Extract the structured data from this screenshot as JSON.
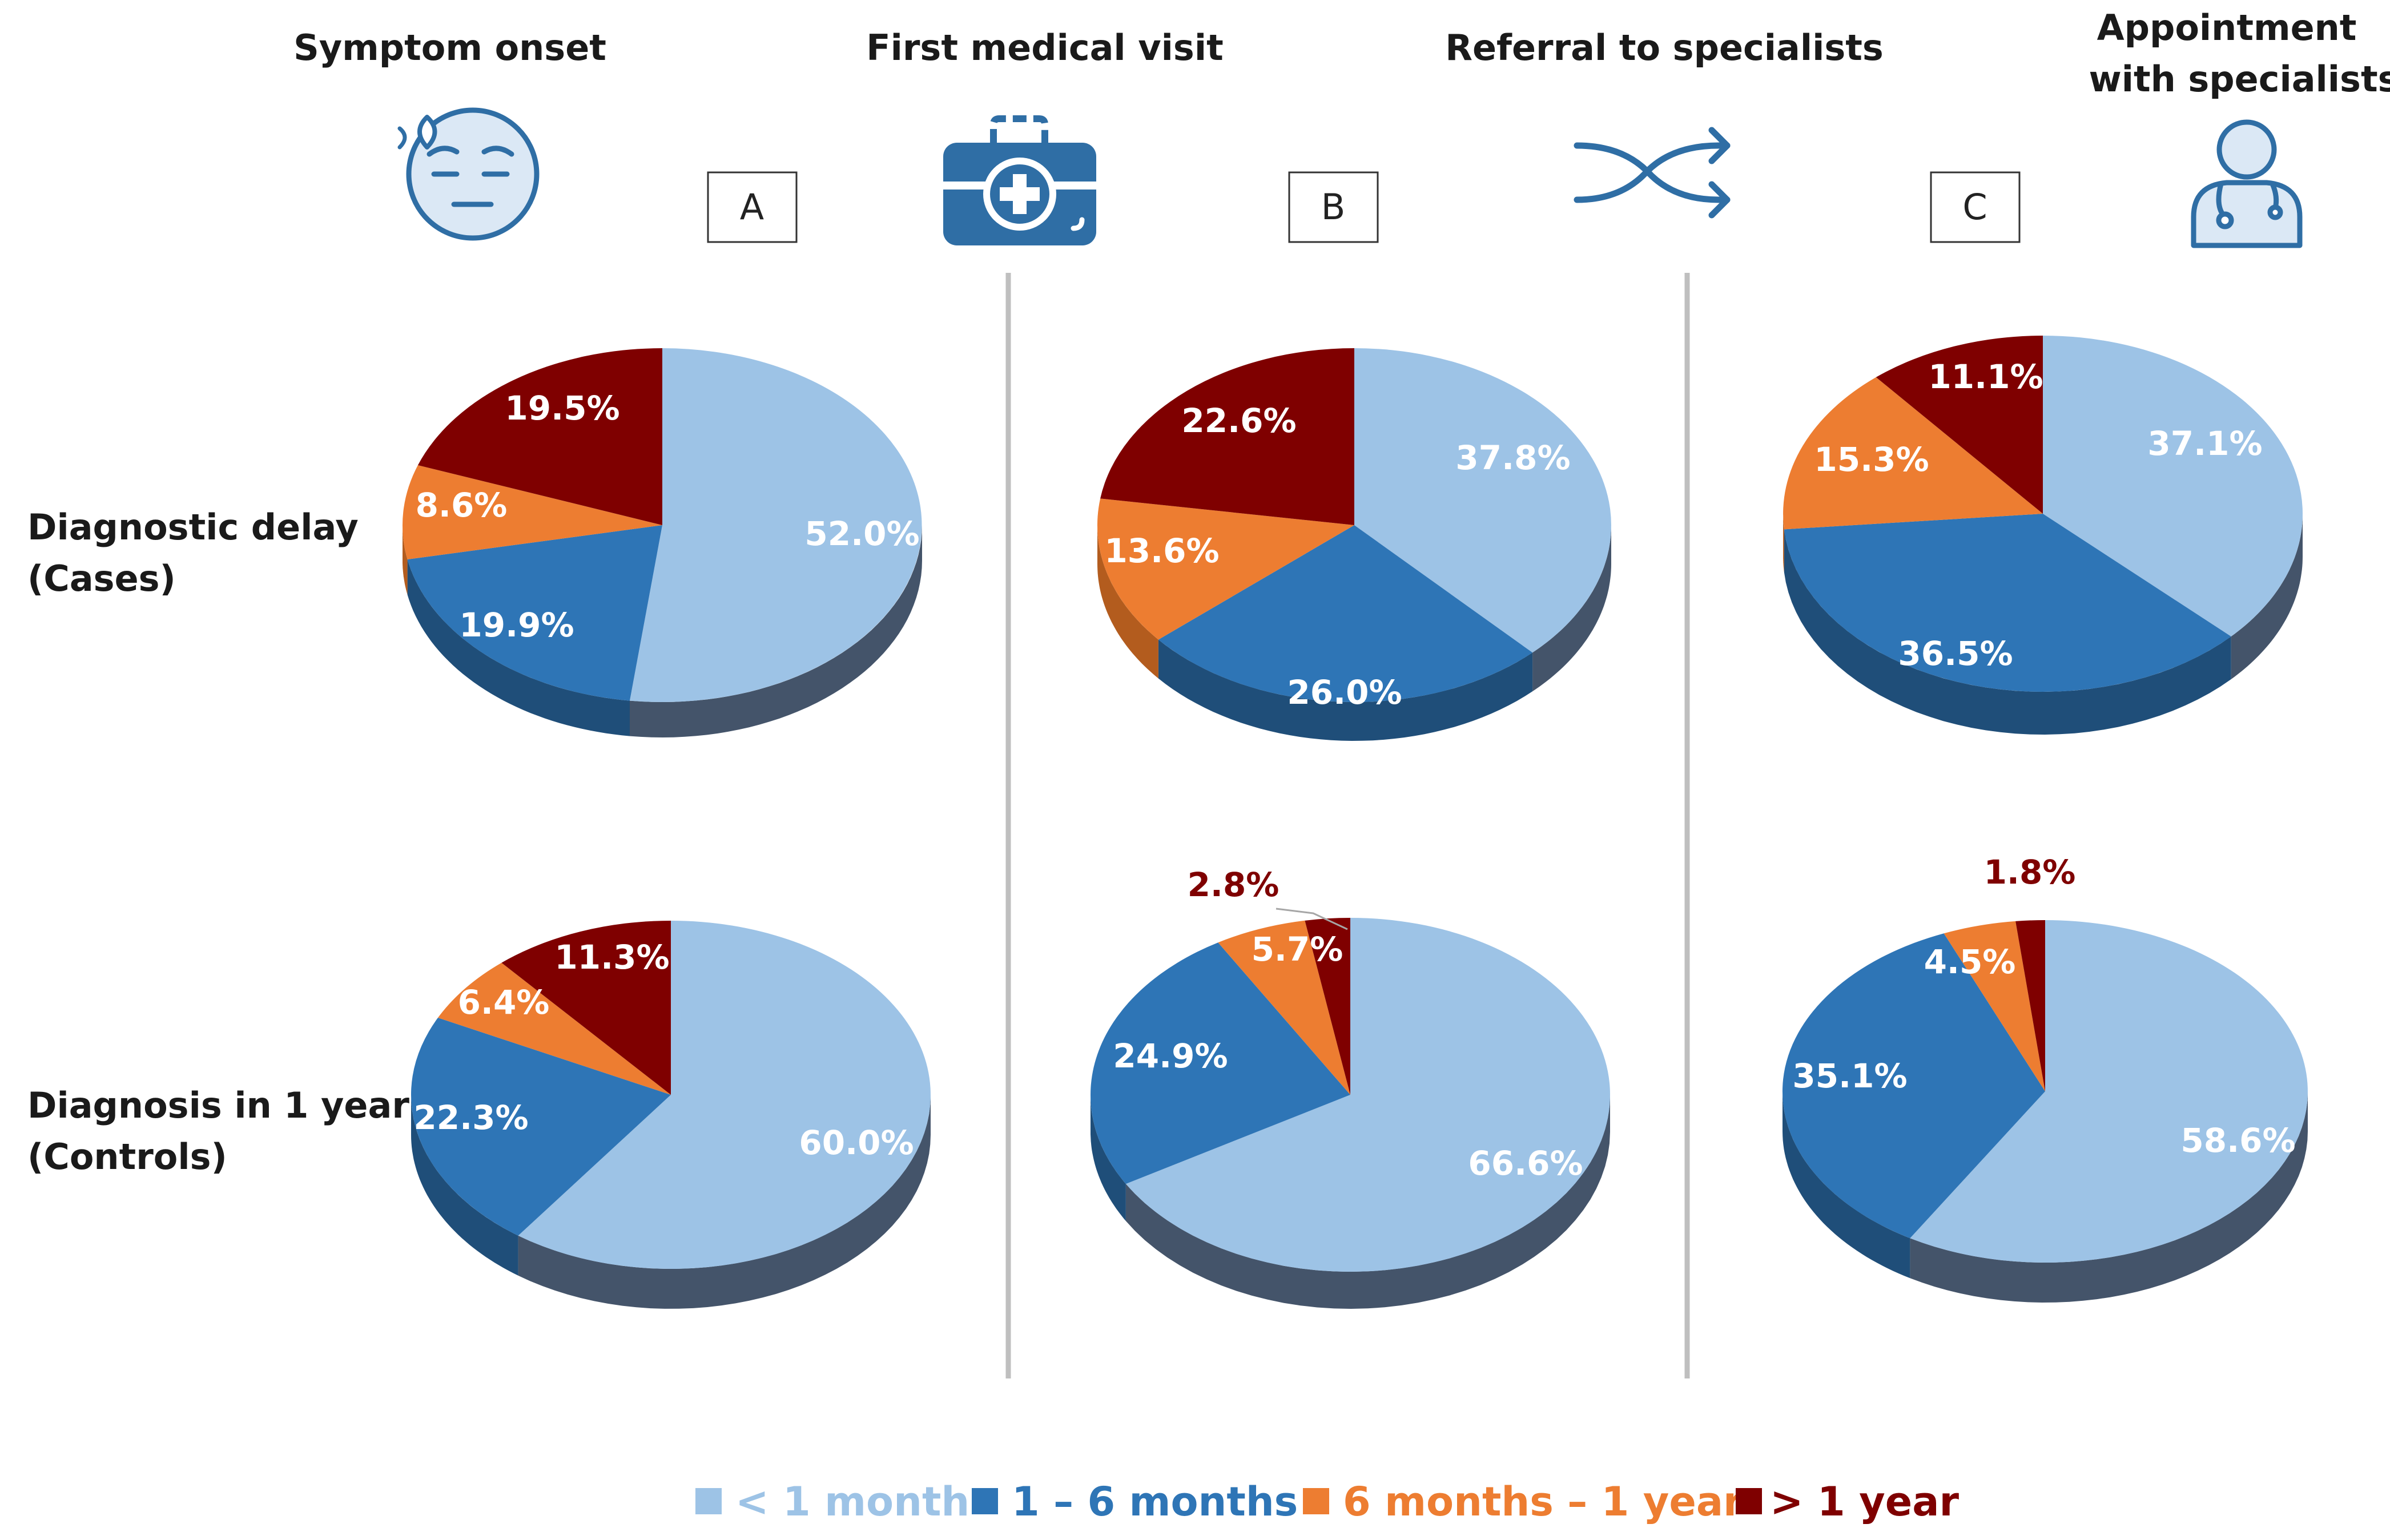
{
  "headers": {
    "symptom_onset": "Symptom onset",
    "first_visit": "First medical visit",
    "referral": "Referral to specialists",
    "appointment_line1": "Appointment",
    "appointment_line2": "with specialists"
  },
  "interval_labels": [
    "A",
    "B",
    "C"
  ],
  "row_labels": {
    "cases_line1": "Diagnostic delay",
    "cases_line2": "(Cases)",
    "controls_line1": "Diagnosis in 1 year",
    "controls_line2": "(Controls)"
  },
  "legend": [
    "< 1 month",
    "1 – 6 months",
    "6 months – 1 year",
    "> 1 year"
  ],
  "colors": {
    "lt1m": "#9dc3e6",
    "m1to6": "#2e75b6",
    "m6to12": "#ed7d31",
    "gt1y": "#7f0000",
    "divider": "#bfbfbf",
    "icon": "#2f6ea5"
  },
  "chart_data": [
    {
      "type": "pie",
      "interval": "A",
      "group": "Cases",
      "categories": [
        "< 1 month",
        "1 – 6 months",
        "6 months – 1 year",
        "> 1 year"
      ],
      "values": [
        52.0,
        19.9,
        8.6,
        19.5
      ],
      "labels": [
        "52.0%",
        "19.9%",
        "8.6%",
        "19.5%"
      ]
    },
    {
      "type": "pie",
      "interval": "B",
      "group": "Cases",
      "categories": [
        "< 1 month",
        "1 – 6 months",
        "6 months – 1 year",
        "> 1 year"
      ],
      "values": [
        37.8,
        26.0,
        13.6,
        22.6
      ],
      "labels": [
        "37.8%",
        "26.0%",
        "13.6%",
        "22.6%"
      ]
    },
    {
      "type": "pie",
      "interval": "C",
      "group": "Cases",
      "categories": [
        "< 1 month",
        "1 – 6 months",
        "6 months – 1 year",
        "> 1 year"
      ],
      "values": [
        37.1,
        36.5,
        15.3,
        11.1
      ],
      "labels": [
        "37.1%",
        "36.5%",
        "15.3%",
        "11.1%"
      ]
    },
    {
      "type": "pie",
      "interval": "A",
      "group": "Controls",
      "categories": [
        "< 1 month",
        "1 – 6 months",
        "6 months – 1 year",
        "> 1 year"
      ],
      "values": [
        60.0,
        22.3,
        6.4,
        11.3
      ],
      "labels": [
        "60.0%",
        "22.3%",
        "6.4%",
        "11.3%"
      ]
    },
    {
      "type": "pie",
      "interval": "B",
      "group": "Controls",
      "categories": [
        "< 1 month",
        "1 – 6 months",
        "6 months – 1 year",
        "> 1 year"
      ],
      "values": [
        66.6,
        24.9,
        5.7,
        2.8
      ],
      "labels": [
        "66.6%",
        "24.9%",
        "5.7%",
        "2.8%"
      ]
    },
    {
      "type": "pie",
      "interval": "C",
      "group": "Controls",
      "categories": [
        "< 1 month",
        "1 – 6 months",
        "6 months – 1 year",
        "> 1 year"
      ],
      "values": [
        58.6,
        35.1,
        4.5,
        1.8
      ],
      "labels": [
        "58.6%",
        "35.1%",
        "4.5%",
        "1.8%"
      ]
    }
  ]
}
